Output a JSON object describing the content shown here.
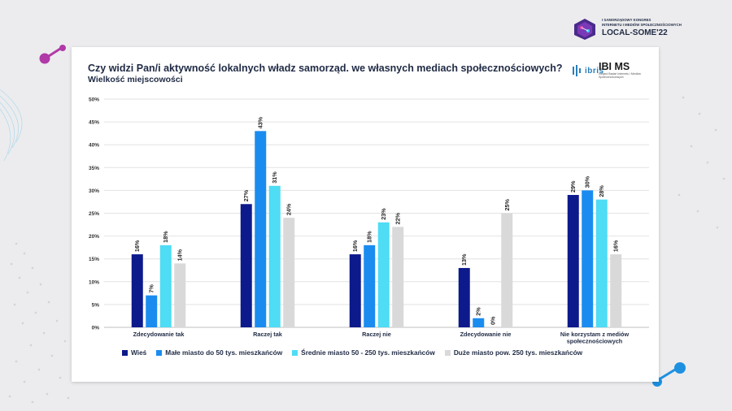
{
  "header": {
    "congress_line1": "I SAMORZĄDOWY KONGRES",
    "congress_line2": "INTERNETU I MEDIÓW SPOŁECZNOŚCIOWYCH",
    "congress_line3": "LOCAL-SOME'22",
    "logo_ibris": "ibris",
    "logo_ibims": "IBI MS",
    "logo_ibims_sub": "Instytut Badań Internetu i Mediów Społecznościowych"
  },
  "colors": {
    "background": "#ececee",
    "accent_pink": "#b03aa8",
    "accent_cyan": "#1e90e0",
    "series": [
      "#0d1a8c",
      "#1a8cf0",
      "#4fdcf5",
      "#d9d9d9"
    ]
  },
  "chart_data": {
    "type": "bar",
    "title": "Czy widzi Pan/i aktywność lokalnych władz samorząd. we własnych mediach społecznościowych?",
    "subtitle": "Wielkość miejscowości",
    "categories": [
      "Zdecydowanie tak",
      "Raczej tak",
      "Raczej nie",
      "Zdecydowanie nie",
      "Nie korzystam z mediów społecznościowych"
    ],
    "category_lines": [
      [
        "Zdecydowanie tak"
      ],
      [
        "Raczej tak"
      ],
      [
        "Raczej nie"
      ],
      [
        "Zdecydowanie nie"
      ],
      [
        "Nie korzystam z mediów",
        "społecznościowych"
      ]
    ],
    "series": [
      {
        "name": "Wieś",
        "values": [
          16,
          27,
          16,
          13,
          29
        ],
        "labels": [
          "16%",
          "27%",
          "16%",
          "13%",
          "29%"
        ]
      },
      {
        "name": "Małe miasto do 50 tys. mieszkańców",
        "values": [
          7,
          43,
          18,
          2,
          30
        ],
        "labels": [
          "7%",
          "43%",
          "18%",
          "2%",
          "30%"
        ]
      },
      {
        "name": "Średnie miasto 50 - 250 tys. mieszkańców",
        "values": [
          18,
          31,
          23,
          0,
          28
        ],
        "labels": [
          "18%",
          "31%",
          "23%",
          "0%",
          "28%"
        ]
      },
      {
        "name": "Duże miasto pow. 250 tys. mieszkańców",
        "values": [
          14,
          24,
          22,
          25,
          16
        ],
        "labels": [
          "14%",
          "24%",
          "22%",
          "25%",
          "16%"
        ]
      }
    ],
    "ylim": [
      0,
      50
    ],
    "yticks": [
      0,
      5,
      10,
      15,
      20,
      25,
      30,
      35,
      40,
      45,
      50
    ],
    "ytick_labels": [
      "0%",
      "5%",
      "10%",
      "15%",
      "20%",
      "25%",
      "30%",
      "35%",
      "40%",
      "45%",
      "50%"
    ],
    "grid": true,
    "legend_position": "bottom"
  }
}
